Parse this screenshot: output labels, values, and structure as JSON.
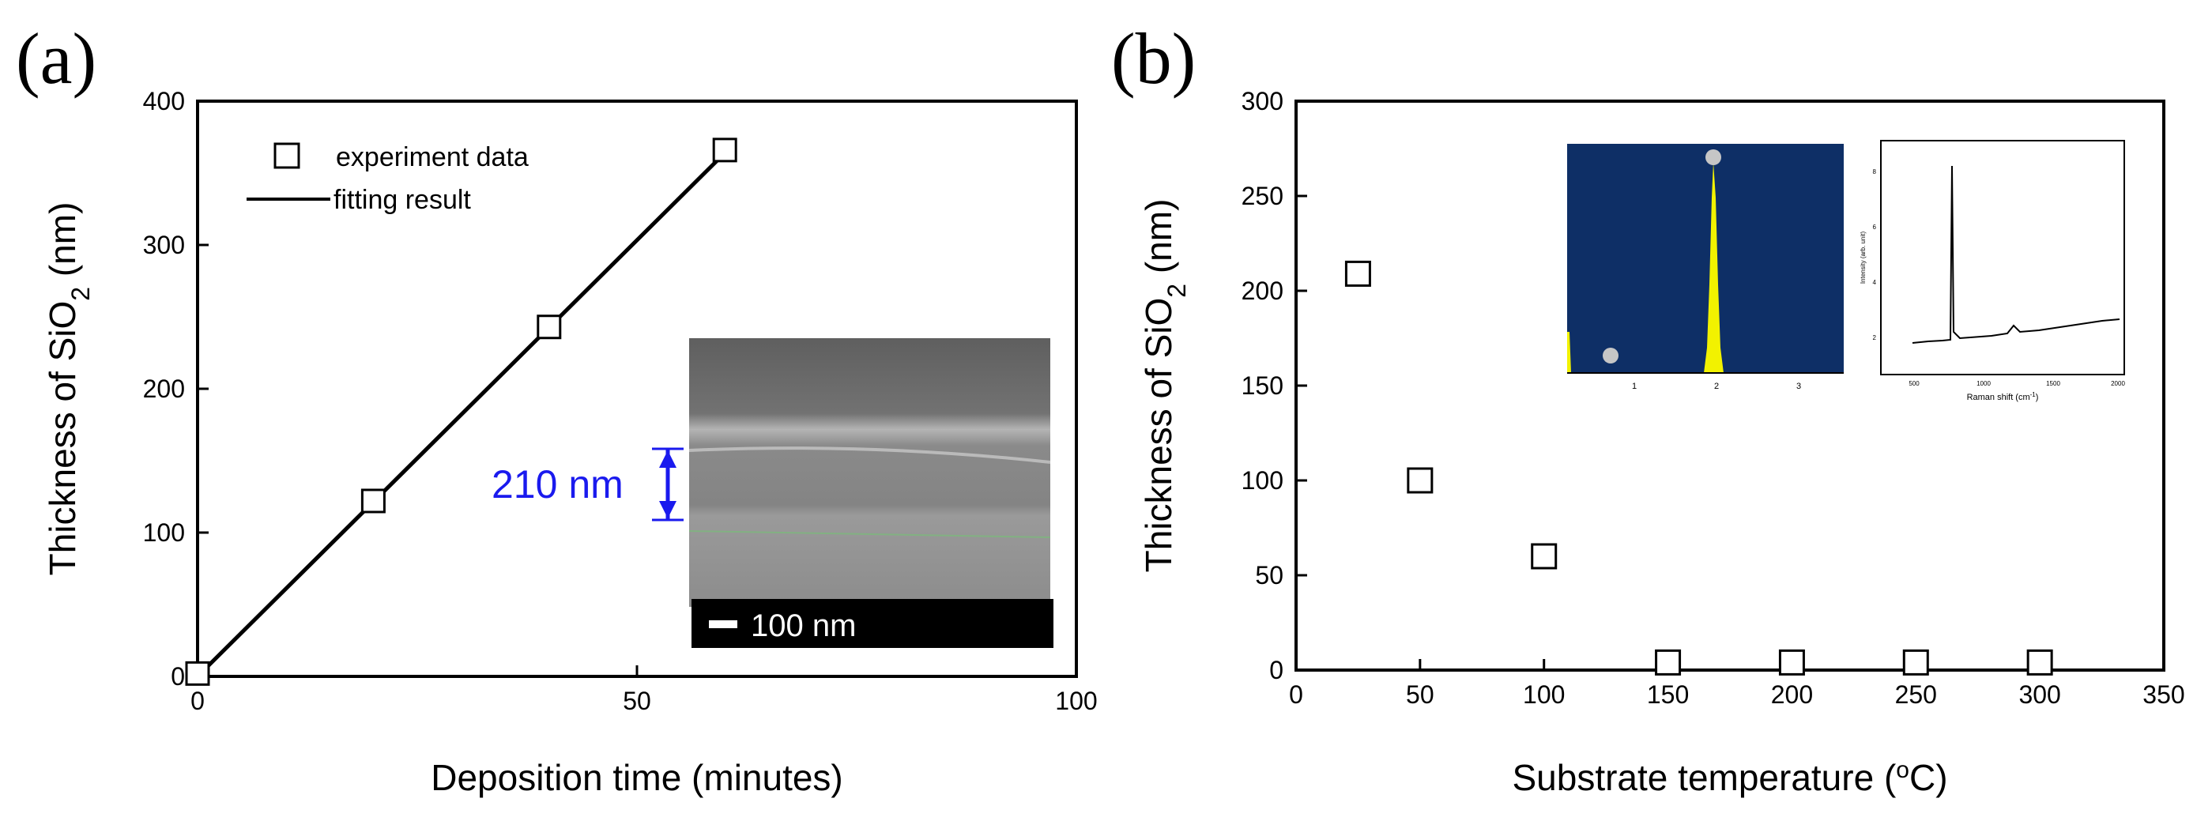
{
  "chart_data": [
    {
      "type": "scatter",
      "panel": "(a)",
      "xlabel": "Deposition time (minutes)",
      "ylabel_main": "Thickness of SiO",
      "ylabel_sub": "2",
      "ylabel_tail": " (nm)",
      "xlim": [
        0,
        100
      ],
      "ylim": [
        0,
        400
      ],
      "xticks": [
        0,
        50,
        100
      ],
      "yticks": [
        0,
        100,
        200,
        300,
        400
      ],
      "series": [
        {
          "name": "experiment data",
          "marker": "open-square",
          "x": [
            0,
            20,
            40,
            60
          ],
          "y": [
            2,
            122,
            243,
            366
          ]
        },
        {
          "name": "fitting result",
          "style": "line",
          "x": [
            0,
            60
          ],
          "y": [
            0,
            364
          ]
        }
      ],
      "inset": {
        "annotation": "210 nm",
        "scalebar": "100 nm"
      }
    },
    {
      "type": "scatter",
      "panel": "(b)",
      "xlabel_main": "Substrate temperature (",
      "xlabel_sup": "o",
      "xlabel_tail": "C)",
      "ylabel_main": "Thickness of SiO",
      "ylabel_sub": "2",
      "ylabel_tail": " (nm)",
      "xlim": [
        0,
        350
      ],
      "ylim": [
        0,
        300
      ],
      "xticks": [
        0,
        50,
        100,
        150,
        200,
        250,
        300,
        350
      ],
      "yticks": [
        0,
        50,
        100,
        150,
        200,
        250,
        300
      ],
      "series": [
        {
          "name": "data",
          "marker": "open-square",
          "x": [
            25,
            50,
            100,
            150,
            200,
            250,
            300
          ],
          "y": [
            209,
            100,
            60,
            4,
            4,
            4,
            4
          ]
        }
      ],
      "inset_eds": {
        "xticks": [
          "1",
          "2",
          "3"
        ]
      },
      "inset_raman": {
        "xlabel_main": "Raman shift (cm",
        "xlabel_sup": "-1",
        "xlabel_tail": ")",
        "ylabel": "Intensity (arb. unit)",
        "xticks": [
          "500",
          "1000",
          "1500",
          "2000"
        ],
        "yticks": [
          "2",
          "4",
          "6",
          "8"
        ]
      }
    }
  ]
}
